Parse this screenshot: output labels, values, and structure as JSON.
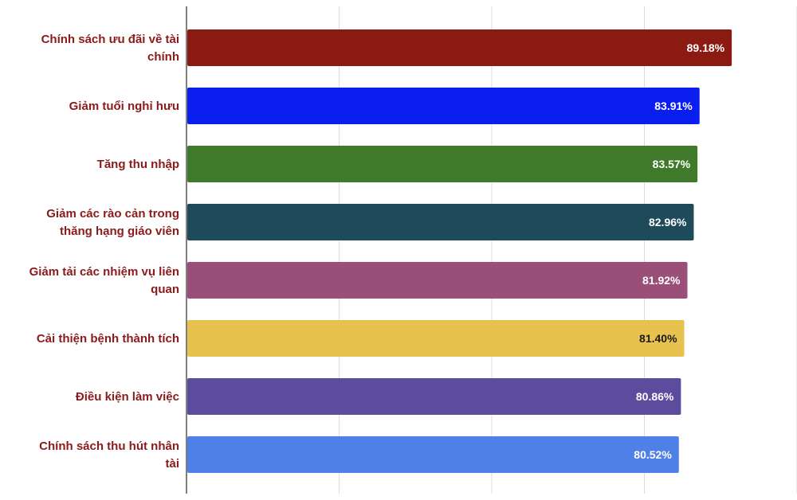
{
  "chart_data": {
    "type": "bar",
    "orientation": "horizontal",
    "categories": [
      [
        "Chính sách ưu đãi về tài",
        "chính"
      ],
      [
        "Giảm tuổi nghỉ hưu"
      ],
      [
        "Tăng thu nhập"
      ],
      [
        "Giảm các rào cản trong",
        "thăng hạng giáo viên"
      ],
      [
        "Giảm tải các nhiệm vụ liên",
        "quan"
      ],
      [
        "Cải thiện bệnh thành tích"
      ],
      [
        "Điều kiện làm việc"
      ],
      [
        "Chính sách thu hút nhân",
        "tài"
      ]
    ],
    "values": [
      89.18,
      83.91,
      83.57,
      82.96,
      81.92,
      81.4,
      80.86,
      80.52
    ],
    "value_labels": [
      "89.18%",
      "83.91%",
      "83.57%",
      "82.96%",
      "81.92%",
      "81.40%",
      "80.86%",
      "80.52%"
    ],
    "colors": [
      "#8b1a12",
      "#0a1ef0",
      "#3f7a2a",
      "#1f4a5a",
      "#9a4f78",
      "#e8c24e",
      "#5d4b9e",
      "#4f80e8"
    ],
    "value_label_colors": [
      "#ffffff",
      "#ffffff",
      "#ffffff",
      "#ffffff",
      "#ffffff",
      "#1a1a1a",
      "#ffffff",
      "#ffffff"
    ],
    "xlim": [
      0,
      100
    ],
    "grid": true,
    "category_label_color": "#8b1a1a"
  }
}
